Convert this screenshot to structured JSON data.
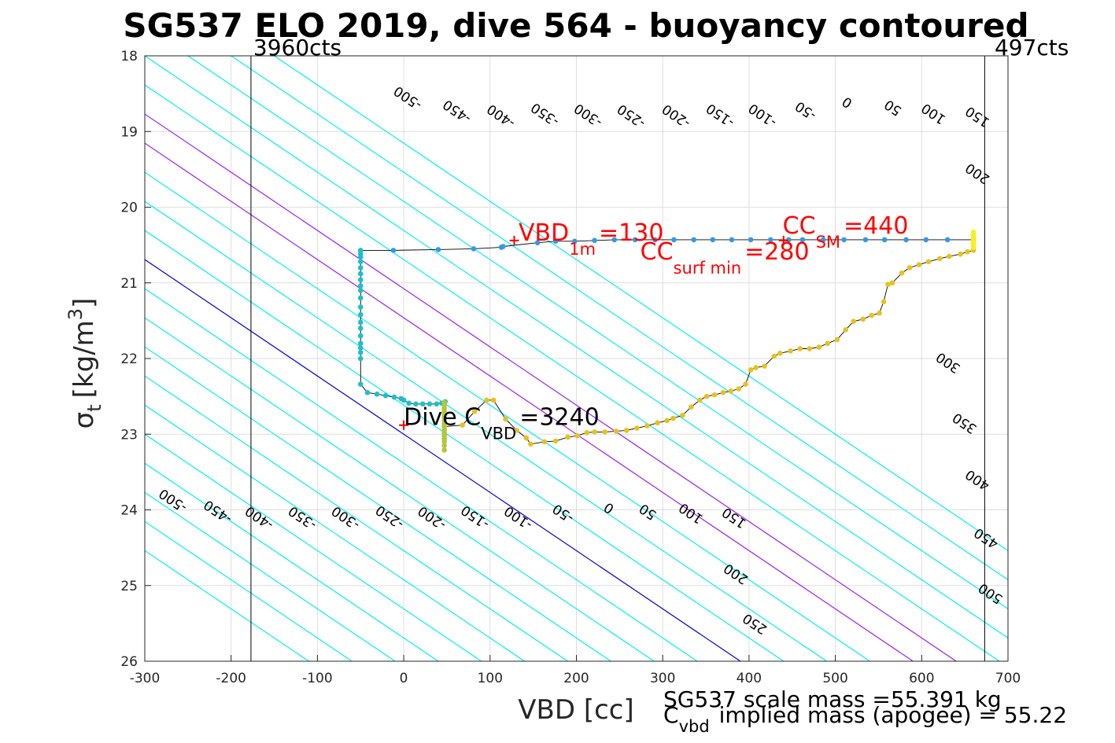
{
  "chart_data": {
    "type": "scatter",
    "title": "SG537 ELO 2019, dive 564 - buoyancy contoured",
    "xlabel": "VBD [cc]",
    "ylabel": {
      "base": "σ",
      "sub": "t",
      "unit": "[kg/m",
      "sup": "3",
      "close": "]"
    },
    "xlim": [
      -300,
      700
    ],
    "ylim": [
      18,
      26
    ],
    "y_reversed": true,
    "grid": true,
    "x_ticks": [
      "-300",
      "-200",
      "-100",
      "0",
      "100",
      "200",
      "300",
      "400",
      "500",
      "600",
      "700"
    ],
    "x_tick_values": [
      -300,
      -200,
      -100,
      0,
      100,
      200,
      300,
      400,
      500,
      600,
      700
    ],
    "y_ticks": [
      "18",
      "19",
      "20",
      "21",
      "22",
      "23",
      "24",
      "25",
      "26"
    ],
    "y_tick_values": [
      18,
      19,
      20,
      21,
      22,
      23,
      24,
      25,
      26
    ],
    "contour_reference": {
      "x": 0,
      "y": 23.0,
      "slope_cc_per_kgm3": 130
    },
    "contour_levels": [
      -500,
      -450,
      -400,
      -350,
      -300,
      -250,
      -200,
      -150,
      -100,
      -50,
      0,
      50,
      100,
      150,
      200,
      250,
      300,
      350,
      400,
      450,
      500
    ],
    "contour_colors": {
      "default": "#00f0f0",
      "zero": "#0000d0",
      "highlight": "#a020f0"
    },
    "highlight_levels": [
      200,
      250
    ],
    "contour_labels_top": [
      {
        "level": -500,
        "text": "-500",
        "x": 5,
        "y": 18.55
      },
      {
        "level": -450,
        "text": "-450",
        "x": 62,
        "y": 18.73
      },
      {
        "level": -400,
        "text": "-400",
        "x": 113,
        "y": 18.79
      },
      {
        "level": -350,
        "text": "-350",
        "x": 164,
        "y": 18.77
      },
      {
        "level": -300,
        "text": "-300",
        "x": 214,
        "y": 18.78
      },
      {
        "level": -250,
        "text": "-250",
        "x": 264,
        "y": 18.79
      },
      {
        "level": -200,
        "text": "-200",
        "x": 316,
        "y": 18.79
      },
      {
        "level": -150,
        "text": "-150",
        "x": 367,
        "y": 18.78
      },
      {
        "level": -100,
        "text": "-100",
        "x": 416,
        "y": 18.78
      },
      {
        "level": -50,
        "text": "-50",
        "x": 466,
        "y": 18.72
      },
      {
        "level": 0,
        "text": "0",
        "x": 514,
        "y": 18.61
      },
      {
        "level": 50,
        "text": "50",
        "x": 567,
        "y": 18.68
      },
      {
        "level": 100,
        "text": "100",
        "x": 614,
        "y": 18.76
      },
      {
        "level": 150,
        "text": "150",
        "x": 665,
        "y": 18.8
      },
      {
        "level": 200,
        "text": "200",
        "x": 665,
        "y": 19.55
      }
    ],
    "contour_labels_bottom": [
      {
        "level": -500,
        "text": "-500",
        "x": -267,
        "y": 23.87
      },
      {
        "level": -450,
        "text": "-450",
        "x": -215,
        "y": 24.02
      },
      {
        "level": -400,
        "text": "-400",
        "x": -167,
        "y": 24.1
      },
      {
        "level": -350,
        "text": "-350",
        "x": -117,
        "y": 24.1
      },
      {
        "level": -300,
        "text": "-300",
        "x": -67,
        "y": 24.1
      },
      {
        "level": -250,
        "text": "-250",
        "x": -16,
        "y": 24.09
      },
      {
        "level": -200,
        "text": "-200",
        "x": 33,
        "y": 24.1
      },
      {
        "level": -150,
        "text": "-150",
        "x": 83,
        "y": 24.09
      },
      {
        "level": -100,
        "text": "-100",
        "x": 133,
        "y": 24.1
      },
      {
        "level": -50,
        "text": "-50",
        "x": 185,
        "y": 24.04
      },
      {
        "level": 0,
        "text": "0",
        "x": 238,
        "y": 23.97
      },
      {
        "level": 50,
        "text": "50",
        "x": 283,
        "y": 24.02
      },
      {
        "level": 100,
        "text": "100",
        "x": 333,
        "y": 24.04
      },
      {
        "level": 150,
        "text": "150",
        "x": 383,
        "y": 24.1
      },
      {
        "level": 200,
        "text": "200",
        "x": 385,
        "y": 24.84
      },
      {
        "level": 250,
        "text": "250",
        "x": 407,
        "y": 25.5
      },
      {
        "level": 300,
        "text": "300",
        "x": 631,
        "y": 22.05
      },
      {
        "level": 350,
        "text": "350",
        "x": 650,
        "y": 22.85
      },
      {
        "level": 400,
        "text": "400",
        "x": 665,
        "y": 23.6
      },
      {
        "level": 450,
        "text": "450",
        "x": 675,
        "y": 24.37
      },
      {
        "level": 500,
        "text": "500",
        "x": 680,
        "y": 25.1
      }
    ],
    "vertical_markers": [
      {
        "x": -177,
        "label": "3960cts",
        "anchor": "start"
      },
      {
        "x": 673,
        "label": "497cts",
        "anchor": "end"
      }
    ],
    "series": [
      {
        "label": "downcast-blue",
        "color": "#3399e6",
        "points": [
          [
            660,
            20.43
          ],
          [
            630,
            20.43
          ],
          [
            605,
            20.43
          ],
          [
            582,
            20.43
          ],
          [
            557,
            20.43
          ],
          [
            535,
            20.43
          ],
          [
            510,
            20.43
          ],
          [
            486,
            20.43
          ],
          [
            462,
            20.43
          ],
          [
            446,
            20.43
          ],
          [
            425,
            20.43
          ],
          [
            402,
            20.43
          ],
          [
            380,
            20.43
          ],
          [
            358,
            20.43
          ],
          [
            336,
            20.43
          ],
          [
            313,
            20.43
          ],
          [
            291,
            20.43
          ],
          [
            268,
            20.43
          ],
          [
            244,
            20.43
          ],
          [
            221,
            20.44
          ],
          [
            198,
            20.45
          ],
          [
            176,
            20.45
          ],
          [
            155,
            20.47
          ],
          [
            115,
            20.52
          ],
          [
            113,
            20.53
          ],
          [
            81,
            20.55
          ],
          [
            40,
            20.56
          ],
          [
            -12,
            20.57
          ]
        ]
      },
      {
        "label": "downcast-teal",
        "color": "#20bec8",
        "points": [
          [
            -50,
            20.57
          ],
          [
            -50,
            20.58
          ],
          [
            -50,
            20.62
          ],
          [
            -50,
            20.66
          ],
          [
            -50,
            20.72
          ],
          [
            -50,
            20.8
          ],
          [
            -50,
            20.88
          ],
          [
            -50,
            20.96
          ],
          [
            -50,
            21.04
          ],
          [
            -50,
            21.1
          ],
          [
            -50,
            21.2
          ],
          [
            -50,
            21.32
          ],
          [
            -50,
            21.42
          ],
          [
            -50,
            21.52
          ],
          [
            -50,
            21.6
          ],
          [
            -50,
            21.7
          ],
          [
            -50,
            21.8
          ],
          [
            -50,
            21.86
          ],
          [
            -50,
            21.92
          ],
          [
            -50,
            22.0
          ],
          [
            -50,
            22.34
          ],
          [
            -42,
            22.45
          ],
          [
            -31,
            22.47
          ],
          [
            -21,
            22.49
          ],
          [
            -11,
            22.51
          ],
          [
            -3,
            22.53
          ],
          [
            0,
            22.55
          ],
          [
            6,
            22.59
          ],
          [
            14,
            22.6
          ],
          [
            22,
            22.6
          ],
          [
            30,
            22.6
          ],
          [
            38,
            22.6
          ],
          [
            44,
            22.59
          ],
          [
            48,
            22.57
          ]
        ]
      },
      {
        "label": "bottom-olive",
        "color": "#b5c63a",
        "points": [
          [
            47,
            22.58
          ],
          [
            47,
            22.62
          ],
          [
            47,
            22.66
          ],
          [
            47,
            22.7
          ],
          [
            47,
            22.74
          ],
          [
            47,
            22.78
          ],
          [
            47,
            22.82
          ],
          [
            47,
            22.86
          ],
          [
            47,
            22.9
          ],
          [
            47,
            22.94
          ],
          [
            47,
            22.98
          ],
          [
            47,
            23.02
          ],
          [
            47,
            23.06
          ],
          [
            47,
            23.1
          ],
          [
            47,
            23.15
          ],
          [
            47,
            23.21
          ]
        ]
      },
      {
        "label": "upcast-gold",
        "color": "#e6c21f",
        "points": [
          [
            68,
            22.88
          ],
          [
            82,
            22.7
          ],
          [
            96,
            22.55
          ],
          [
            104,
            22.55
          ],
          [
            118,
            22.8
          ],
          [
            131,
            22.95
          ],
          [
            142,
            23.05
          ],
          [
            147,
            23.13
          ],
          [
            163,
            23.1
          ],
          [
            176,
            23.09
          ],
          [
            190,
            23.04
          ],
          [
            201,
            23.02
          ],
          [
            212,
            22.98
          ],
          [
            221,
            22.97
          ],
          [
            233,
            22.97
          ],
          [
            246,
            22.96
          ],
          [
            258,
            22.95
          ],
          [
            270,
            22.92
          ],
          [
            282,
            22.89
          ],
          [
            294,
            22.85
          ],
          [
            305,
            22.82
          ],
          [
            312,
            22.79
          ],
          [
            323,
            22.75
          ],
          [
            333,
            22.64
          ],
          [
            343,
            22.55
          ],
          [
            351,
            22.5
          ],
          [
            360,
            22.48
          ],
          [
            370,
            22.45
          ],
          [
            379,
            22.43
          ],
          [
            388,
            22.4
          ],
          [
            396,
            22.34
          ],
          [
            402,
            22.15
          ],
          [
            408,
            22.12
          ],
          [
            418,
            22.1
          ],
          [
            429,
            21.97
          ],
          [
            436,
            21.93
          ],
          [
            448,
            21.9
          ],
          [
            459,
            21.87
          ],
          [
            470,
            21.87
          ],
          [
            481,
            21.85
          ],
          [
            491,
            21.8
          ],
          [
            502,
            21.75
          ],
          [
            512,
            21.62
          ],
          [
            521,
            21.51
          ],
          [
            532,
            21.48
          ],
          [
            542,
            21.43
          ],
          [
            551,
            21.4
          ],
          [
            556,
            21.25
          ],
          [
            561,
            21.02
          ],
          [
            566,
            21.0
          ],
          [
            577,
            20.87
          ],
          [
            586,
            20.8
          ],
          [
            597,
            20.76
          ],
          [
            608,
            20.72
          ],
          [
            621,
            20.68
          ],
          [
            632,
            20.65
          ],
          [
            645,
            20.62
          ],
          [
            653,
            20.59
          ],
          [
            660,
            20.57
          ]
        ]
      },
      {
        "label": "surface-yellow",
        "color": "#f5f01e",
        "points": [
          [
            660,
            20.33
          ],
          [
            660,
            20.37
          ],
          [
            660,
            20.41
          ],
          [
            660,
            20.44
          ],
          [
            660,
            20.47
          ],
          [
            660,
            20.5
          ],
          [
            660,
            20.53
          ]
        ]
      }
    ],
    "markers": [
      {
        "x": 128,
        "y": 20.44,
        "color": "#ff0000",
        "symbol": "+",
        "note": "VBD 1m"
      },
      {
        "x": 440,
        "y": 20.44,
        "color": "#ff0000",
        "symbol": "+",
        "note": "CC SM"
      },
      {
        "x": 0,
        "y": 22.88,
        "color": "#ff0000",
        "symbol": "+",
        "note": "Dive C VBD"
      }
    ],
    "annotations": [
      {
        "x": 133,
        "y": 20.44,
        "base": "VBD",
        "sub": "1m",
        "value": "=130",
        "color": "#ff0000"
      },
      {
        "x": 439,
        "y": 20.35,
        "base": "CC",
        "sub": "SM",
        "value": "=440",
        "color": "#ff0000"
      },
      {
        "x": 274,
        "y": 20.69,
        "base": "CC",
        "sub": "surf min",
        "value": "=280",
        "color": "#ff0000"
      },
      {
        "x": 0,
        "y": 22.88,
        "base": "Dive C",
        "sub": "VBD",
        "value": "=3240",
        "color": "#000000"
      }
    ],
    "footer": {
      "line1": "SG537 scale mass =55.391 kg",
      "line2_base": "C",
      "line2_sub": "vbd",
      "line2_rest": "implied mass (apogee) = 55.22"
    }
  }
}
